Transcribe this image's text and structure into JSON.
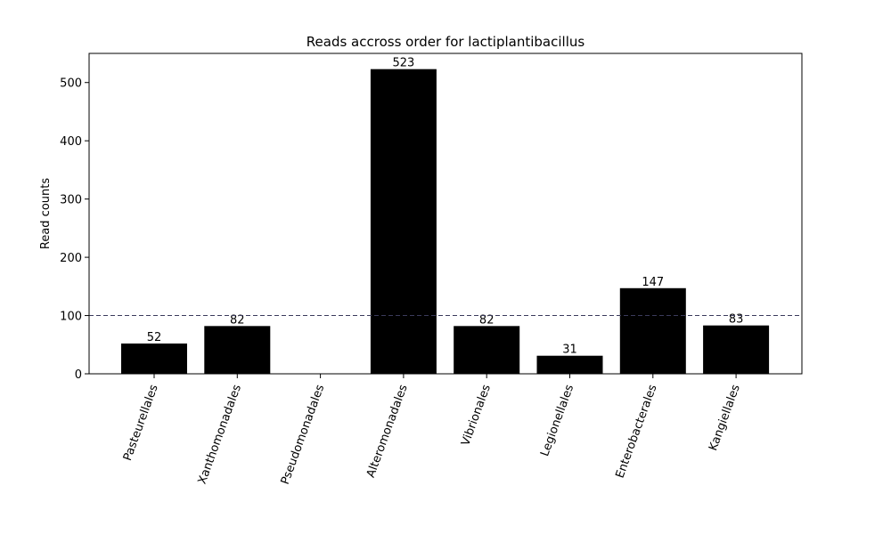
{
  "chart_data": {
    "type": "bar",
    "title": "Reads accross order for lactiplantibacillus",
    "xlabel": "",
    "ylabel": "Read counts",
    "categories": [
      "Pasteurellales",
      "Xanthomonadales",
      "Pseudomonadales",
      "Alteromonadales",
      "Vibrionales",
      "Legionellales",
      "Enterobacterales",
      "Kangiellales"
    ],
    "values": [
      52,
      82,
      0,
      523,
      82,
      31,
      147,
      83
    ],
    "data_labels": [
      "52",
      "82",
      "",
      "523",
      "82",
      "31",
      "147",
      "83"
    ],
    "ylim": [
      0,
      550
    ],
    "yticks": [
      0,
      100,
      200,
      300,
      400,
      500
    ],
    "threshold": 100,
    "bar_color": "#000000",
    "threshold_color": "#3b3b5c",
    "grid": false
  }
}
